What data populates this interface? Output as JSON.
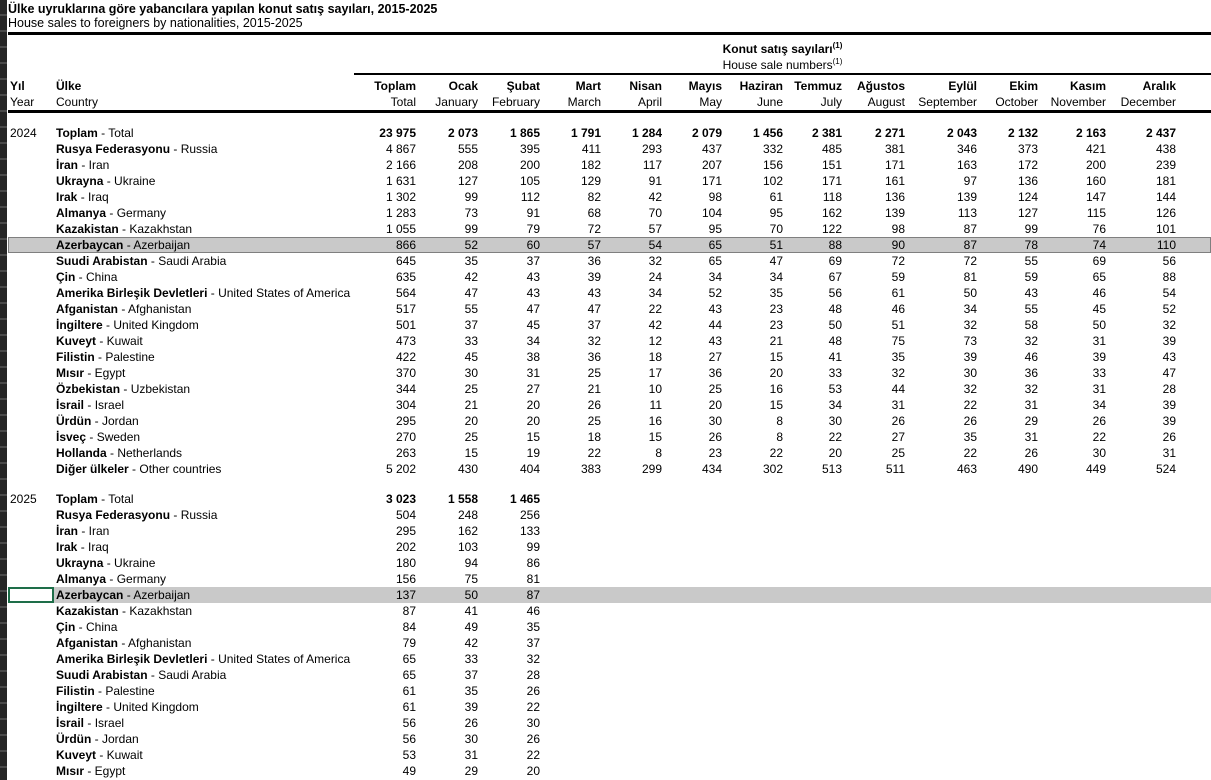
{
  "page": {
    "title": "Ülke uyruklarına göre yabancılara yapılan konut satış sayıları, 2015-2025",
    "subtitle": "House sales to foreigners by nationalities, 2015-2025"
  },
  "table": {
    "group_header_tr": "Konut satış sayıları",
    "group_header_en": "House sale numbers",
    "footnote_marker": "(1)",
    "highlight_color": "#c9c9c9",
    "active_cell_border_color": "#1e6e49",
    "columns": {
      "year_tr": "Yıl",
      "year_en": "Year",
      "country_tr": "Ülke",
      "country_en": "Country",
      "months": [
        {
          "tr": "Toplam",
          "en": "Total"
        },
        {
          "tr": "Ocak",
          "en": "January"
        },
        {
          "tr": "Şubat",
          "en": "February"
        },
        {
          "tr": "Mart",
          "en": "March"
        },
        {
          "tr": "Nisan",
          "en": "April"
        },
        {
          "tr": "Mayıs",
          "en": "May"
        },
        {
          "tr": "Haziran",
          "en": "June"
        },
        {
          "tr": "Temmuz",
          "en": "July"
        },
        {
          "tr": "Ağustos",
          "en": "August"
        },
        {
          "tr": "Eylül",
          "en": "September"
        },
        {
          "tr": "Ekim",
          "en": "October"
        },
        {
          "tr": "Kasım",
          "en": "November"
        },
        {
          "tr": "Aralık",
          "en": "December"
        }
      ]
    },
    "sections": [
      {
        "year": "2024",
        "rows": [
          {
            "tr": "Toplam",
            "en": "Total",
            "bold": true,
            "values": [
              "23 975",
              "2 073",
              "1 865",
              "1 791",
              "1 284",
              "2 079",
              "1 456",
              "2 381",
              "2 271",
              "2 043",
              "2 132",
              "2 163",
              "2 437"
            ]
          },
          {
            "tr": "Rusya Federasyonu",
            "en": "Russia",
            "values": [
              "4 867",
              "555",
              "395",
              "411",
              "293",
              "437",
              "332",
              "485",
              "381",
              "346",
              "373",
              "421",
              "438"
            ]
          },
          {
            "tr": "İran",
            "en": "Iran",
            "values": [
              "2 166",
              "208",
              "200",
              "182",
              "117",
              "207",
              "156",
              "151",
              "171",
              "163",
              "172",
              "200",
              "239"
            ]
          },
          {
            "tr": "Ukrayna",
            "en": "Ukraine",
            "values": [
              "1 631",
              "127",
              "105",
              "129",
              "91",
              "171",
              "102",
              "171",
              "161",
              "97",
              "136",
              "160",
              "181"
            ]
          },
          {
            "tr": "Irak",
            "en": "Iraq",
            "values": [
              "1 302",
              "99",
              "112",
              "82",
              "42",
              "98",
              "61",
              "118",
              "136",
              "139",
              "124",
              "147",
              "144"
            ]
          },
          {
            "tr": "Almanya",
            "en": "Germany",
            "values": [
              "1 283",
              "73",
              "91",
              "68",
              "70",
              "104",
              "95",
              "162",
              "139",
              "113",
              "127",
              "115",
              "126"
            ]
          },
          {
            "tr": "Kazakistan",
            "en": "Kazakhstan",
            "values": [
              "1 055",
              "99",
              "79",
              "72",
              "57",
              "95",
              "70",
              "122",
              "98",
              "87",
              "99",
              "76",
              "101"
            ]
          },
          {
            "tr": "Azerbaycan",
            "en": "Azerbaijan",
            "highlight": "outlined",
            "values": [
              "866",
              "52",
              "60",
              "57",
              "54",
              "65",
              "51",
              "88",
              "90",
              "87",
              "78",
              "74",
              "110"
            ]
          },
          {
            "tr": "Suudi Arabistan",
            "en": "Saudi Arabia",
            "values": [
              "645",
              "35",
              "37",
              "36",
              "32",
              "65",
              "47",
              "69",
              "72",
              "72",
              "55",
              "69",
              "56"
            ]
          },
          {
            "tr": "Çin",
            "en": "China",
            "values": [
              "635",
              "42",
              "43",
              "39",
              "24",
              "34",
              "34",
              "67",
              "59",
              "81",
              "59",
              "65",
              "88"
            ]
          },
          {
            "tr": "Amerika Birleşik Devletleri",
            "en": "United States of America",
            "values": [
              "564",
              "47",
              "43",
              "43",
              "34",
              "52",
              "35",
              "56",
              "61",
              "50",
              "43",
              "46",
              "54"
            ]
          },
          {
            "tr": "Afganistan",
            "en": "Afghanistan",
            "values": [
              "517",
              "55",
              "47",
              "47",
              "22",
              "43",
              "23",
              "48",
              "46",
              "34",
              "55",
              "45",
              "52"
            ]
          },
          {
            "tr": "İngiltere",
            "en": "United Kingdom",
            "values": [
              "501",
              "37",
              "45",
              "37",
              "42",
              "44",
              "23",
              "50",
              "51",
              "32",
              "58",
              "50",
              "32"
            ]
          },
          {
            "tr": "Kuveyt",
            "en": "Kuwait",
            "values": [
              "473",
              "33",
              "34",
              "32",
              "12",
              "43",
              "21",
              "48",
              "75",
              "73",
              "32",
              "31",
              "39"
            ]
          },
          {
            "tr": "Filistin",
            "en": "Palestine",
            "values": [
              "422",
              "45",
              "38",
              "36",
              "18",
              "27",
              "15",
              "41",
              "35",
              "39",
              "46",
              "39",
              "43"
            ]
          },
          {
            "tr": "Mısır",
            "en": "Egypt",
            "values": [
              "370",
              "30",
              "31",
              "25",
              "17",
              "36",
              "20",
              "33",
              "32",
              "30",
              "36",
              "33",
              "47"
            ]
          },
          {
            "tr": "Özbekistan",
            "en": "Uzbekistan",
            "values": [
              "344",
              "25",
              "27",
              "21",
              "10",
              "25",
              "16",
              "53",
              "44",
              "32",
              "32",
              "31",
              "28"
            ]
          },
          {
            "tr": "İsrail",
            "en": "Israel",
            "values": [
              "304",
              "21",
              "20",
              "26",
              "11",
              "20",
              "15",
              "34",
              "31",
              "22",
              "31",
              "34",
              "39"
            ]
          },
          {
            "tr": "Ürdün",
            "en": "Jordan",
            "values": [
              "295",
              "20",
              "20",
              "25",
              "16",
              "30",
              "8",
              "30",
              "26",
              "26",
              "29",
              "26",
              "39"
            ]
          },
          {
            "tr": "İsveç",
            "en": "Sweden",
            "values": [
              "270",
              "25",
              "15",
              "18",
              "15",
              "26",
              "8",
              "22",
              "27",
              "35",
              "31",
              "22",
              "26"
            ]
          },
          {
            "tr": "Hollanda",
            "en": "Netherlands",
            "values": [
              "263",
              "15",
              "19",
              "22",
              "8",
              "23",
              "22",
              "20",
              "25",
              "22",
              "26",
              "30",
              "31"
            ]
          },
          {
            "tr": "Diğer ülkeler",
            "en": "Other countries",
            "values": [
              "5 202",
              "430",
              "404",
              "383",
              "299",
              "434",
              "302",
              "513",
              "511",
              "463",
              "490",
              "449",
              "524"
            ]
          }
        ]
      },
      {
        "year": "2025",
        "rows": [
          {
            "tr": "Toplam",
            "en": "Total",
            "bold": true,
            "values": [
              "3 023",
              "1 558",
              "1 465"
            ]
          },
          {
            "tr": "Rusya Federasyonu",
            "en": "Russia",
            "values": [
              "504",
              "248",
              "256"
            ]
          },
          {
            "tr": "İran",
            "en": "Iran",
            "values": [
              "295",
              "162",
              "133"
            ]
          },
          {
            "tr": "Irak",
            "en": "Iraq",
            "values": [
              "202",
              "103",
              "99"
            ]
          },
          {
            "tr": "Ukrayna",
            "en": "Ukraine",
            "values": [
              "180",
              "94",
              "86"
            ]
          },
          {
            "tr": "Almanya",
            "en": "Germany",
            "values": [
              "156",
              "75",
              "81"
            ]
          },
          {
            "tr": "Azerbaycan",
            "en": "Azerbaijan",
            "highlight": "active",
            "active_cell": true,
            "values": [
              "137",
              "50",
              "87"
            ]
          },
          {
            "tr": "Kazakistan",
            "en": "Kazakhstan",
            "values": [
              "87",
              "41",
              "46"
            ]
          },
          {
            "tr": "Çin",
            "en": "China",
            "values": [
              "84",
              "49",
              "35"
            ]
          },
          {
            "tr": "Afganistan",
            "en": "Afghanistan",
            "values": [
              "79",
              "42",
              "37"
            ]
          },
          {
            "tr": "Amerika Birleşik Devletleri",
            "en": "United States of America",
            "values": [
              "65",
              "33",
              "32"
            ]
          },
          {
            "tr": "Suudi Arabistan",
            "en": "Saudi Arabia",
            "values": [
              "65",
              "37",
              "28"
            ]
          },
          {
            "tr": "Filistin",
            "en": "Palestine",
            "values": [
              "61",
              "35",
              "26"
            ]
          },
          {
            "tr": "İngiltere",
            "en": "United Kingdom",
            "values": [
              "61",
              "39",
              "22"
            ]
          },
          {
            "tr": "İsrail",
            "en": "Israel",
            "values": [
              "56",
              "26",
              "30"
            ]
          },
          {
            "tr": "Ürdün",
            "en": "Jordan",
            "values": [
              "56",
              "30",
              "26"
            ]
          },
          {
            "tr": "Kuveyt",
            "en": "Kuwait",
            "values": [
              "53",
              "31",
              "22"
            ]
          },
          {
            "tr": "Mısır",
            "en": "Egypt",
            "values": [
              "49",
              "29",
              "20"
            ]
          }
        ]
      }
    ]
  }
}
